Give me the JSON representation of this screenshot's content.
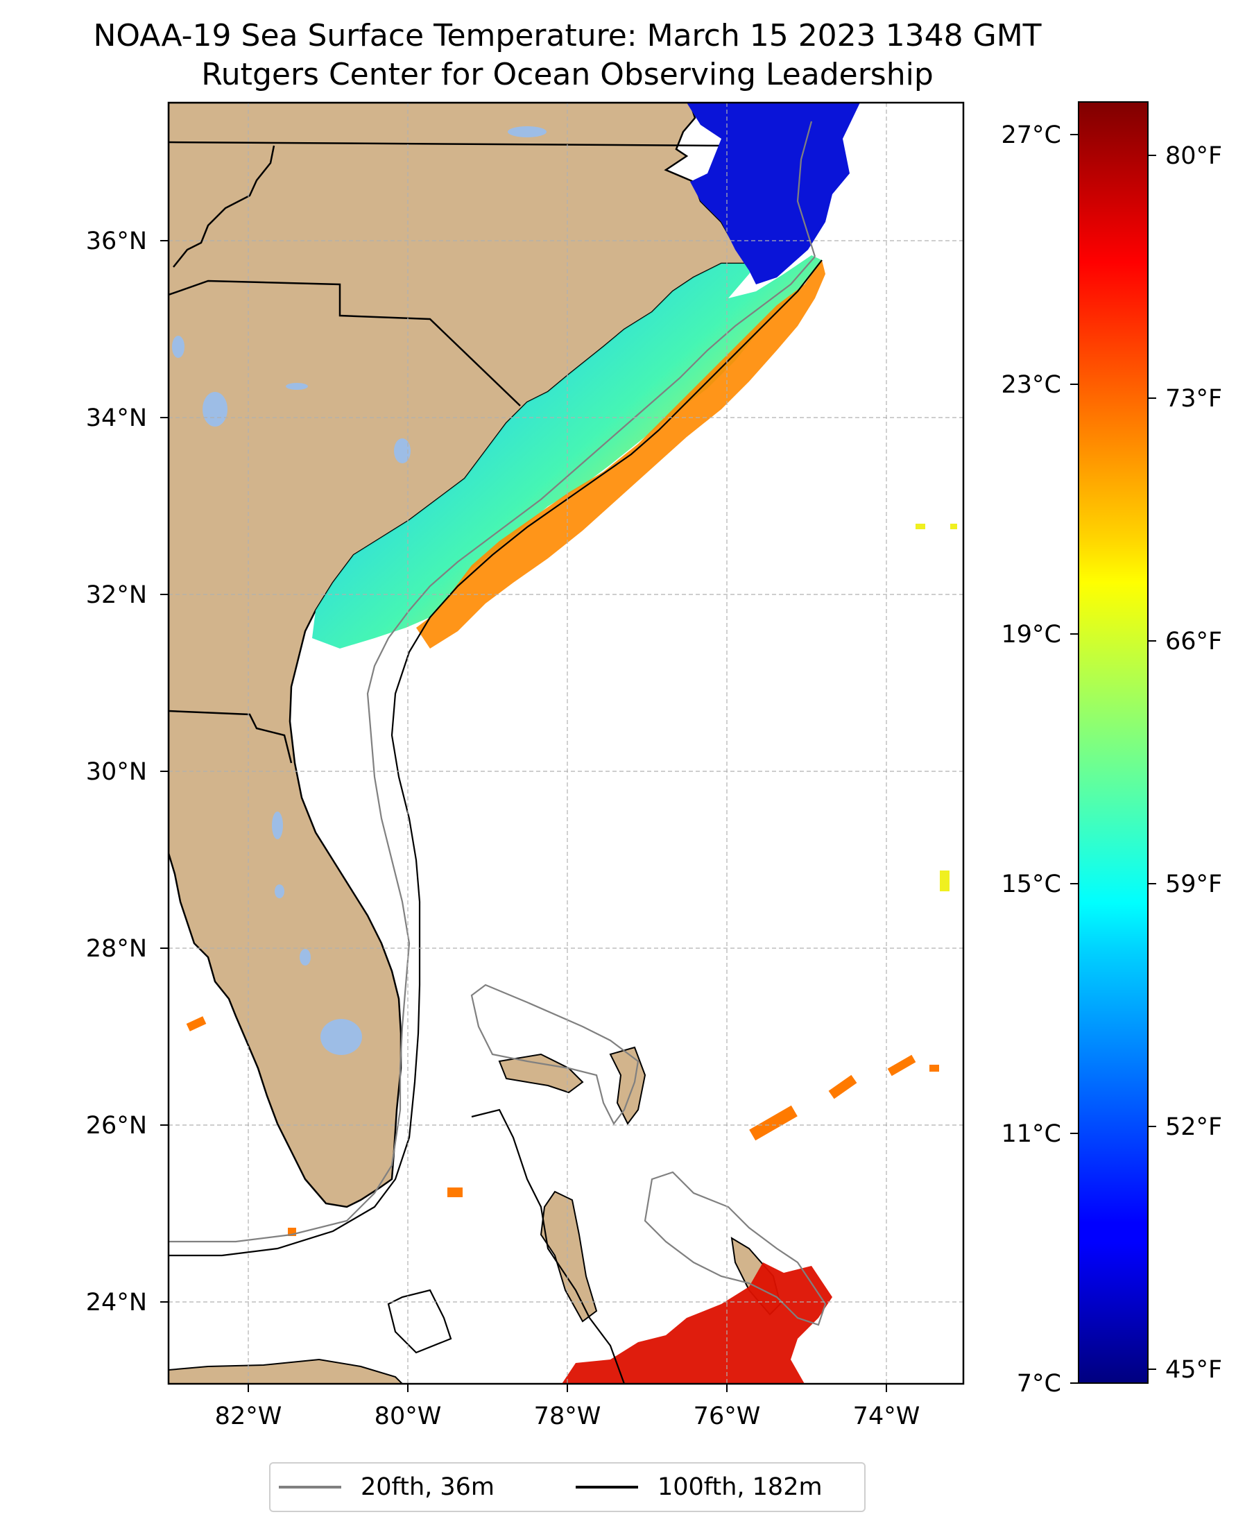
{
  "title": "NOAA-19 Sea Surface Temperature: March 15 2023 1348 GMT",
  "subtitle": "Rutgers Center for Ocean Observing Leadership",
  "map": {
    "lon_range": [
      -83,
      -73
    ],
    "lat_range": [
      23.1,
      37.0
    ],
    "lon_ticks": [
      {
        "value": -82,
        "label": "82°W"
      },
      {
        "value": -80,
        "label": "80°W"
      },
      {
        "value": -78,
        "label": "78°W"
      },
      {
        "value": -76,
        "label": "76°W"
      },
      {
        "value": -74,
        "label": "74°W"
      }
    ],
    "lat_ticks": [
      {
        "value": 24,
        "label": "24°N"
      },
      {
        "value": 26,
        "label": "26°N"
      },
      {
        "value": 28,
        "label": "28°N"
      },
      {
        "value": 30,
        "label": "30°N"
      },
      {
        "value": 32,
        "label": "32°N"
      },
      {
        "value": 34,
        "label": "34°N"
      },
      {
        "value": 36,
        "label": "36°N"
      }
    ],
    "gridlines": true,
    "colors": {
      "land": "#d2b48c",
      "lakes": "#9dbde6",
      "ocean": "#ffffff",
      "grid": "#b0b0b0",
      "contour_20fth": "#808080",
      "contour_100fth": "#000000"
    }
  },
  "colorbar": {
    "colormap": "jet",
    "range_c": [
      7,
      28
    ],
    "celsius_ticks": [
      {
        "value": 7,
        "label": "7°C"
      },
      {
        "value": 11,
        "label": "11°C"
      },
      {
        "value": 15,
        "label": "15°C"
      },
      {
        "value": 19,
        "label": "19°C"
      },
      {
        "value": 23,
        "label": "23°C"
      },
      {
        "value": 27,
        "label": "27°C"
      }
    ],
    "fahrenheit_ticks": [
      {
        "value": 45,
        "label": "45°F"
      },
      {
        "value": 52,
        "label": "52°F"
      },
      {
        "value": 59,
        "label": "59°F"
      },
      {
        "value": 66,
        "label": "66°F"
      },
      {
        "value": 73,
        "label": "73°F"
      },
      {
        "value": 80,
        "label": "80°F"
      }
    ]
  },
  "legend": {
    "items": [
      {
        "label": "20fth, 36m",
        "color": "#808080"
      },
      {
        "label": "100fth, 182m",
        "color": "#000000"
      }
    ]
  }
}
